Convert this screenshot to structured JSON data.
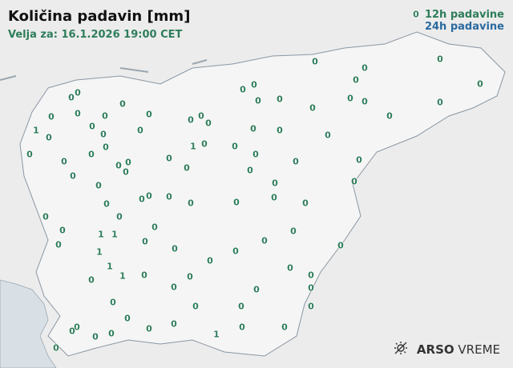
{
  "title": "Količina padavin [mm]",
  "valid": "Velja za: 16.1.2026 19:00 CET",
  "legend": {
    "h12": "12h padavine",
    "h24": "24h padavine",
    "color12": "#2e7d5b",
    "color24": "#2a6aa0"
  },
  "logo": {
    "brand": "ARSO",
    "product": "VREME",
    "icon": "sun-icon"
  },
  "stations": [
    [
      519,
      18,
      "0"
    ],
    [
      393,
      77,
      "0"
    ],
    [
      549,
      74,
      "0"
    ],
    [
      455,
      85,
      "0"
    ],
    [
      97,
      116,
      "0"
    ],
    [
      89,
      122,
      "0"
    ],
    [
      317,
      106,
      "0"
    ],
    [
      303,
      112,
      "0"
    ],
    [
      444,
      100,
      "0"
    ],
    [
      599,
      105,
      "0"
    ],
    [
      153,
      130,
      "0"
    ],
    [
      322,
      126,
      "0"
    ],
    [
      349,
      124,
      "0"
    ],
    [
      437,
      123,
      "0"
    ],
    [
      455,
      127,
      "0"
    ],
    [
      549,
      128,
      "0"
    ],
    [
      64,
      146,
      "0"
    ],
    [
      97,
      142,
      "0"
    ],
    [
      131,
      145,
      "0"
    ],
    [
      186,
      143,
      "0"
    ],
    [
      238,
      150,
      "0"
    ],
    [
      251,
      145,
      "0"
    ],
    [
      260,
      154,
      "0"
    ],
    [
      390,
      135,
      "0"
    ],
    [
      486,
      145,
      "0"
    ],
    [
      45,
      163,
      "1"
    ],
    [
      61,
      172,
      "0"
    ],
    [
      115,
      158,
      "0"
    ],
    [
      175,
      163,
      "0"
    ],
    [
      129,
      168,
      "0"
    ],
    [
      316,
      161,
      "0"
    ],
    [
      349,
      163,
      "0"
    ],
    [
      409,
      169,
      "0"
    ],
    [
      37,
      193,
      "0"
    ],
    [
      132,
      184,
      "0"
    ],
    [
      241,
      183,
      "1"
    ],
    [
      255,
      180,
      "0"
    ],
    [
      293,
      183,
      "0"
    ],
    [
      319,
      193,
      "0"
    ],
    [
      80,
      202,
      "0"
    ],
    [
      114,
      193,
      "0"
    ],
    [
      211,
      198,
      "0"
    ],
    [
      148,
      207,
      "0"
    ],
    [
      160,
      203,
      "0"
    ],
    [
      157,
      215,
      "0"
    ],
    [
      233,
      210,
      "0"
    ],
    [
      312,
      213,
      "0"
    ],
    [
      369,
      202,
      "0"
    ],
    [
      448,
      200,
      "0"
    ],
    [
      91,
      220,
      "0"
    ],
    [
      123,
      232,
      "0"
    ],
    [
      343,
      229,
      "0"
    ],
    [
      442,
      227,
      "0"
    ],
    [
      186,
      245,
      "0"
    ],
    [
      177,
      249,
      "0"
    ],
    [
      211,
      246,
      "0"
    ],
    [
      342,
      247,
      "0"
    ],
    [
      133,
      255,
      "0"
    ],
    [
      238,
      254,
      "0"
    ],
    [
      295,
      253,
      "0"
    ],
    [
      381,
      254,
      "0"
    ],
    [
      57,
      271,
      "0"
    ],
    [
      149,
      271,
      "0"
    ],
    [
      78,
      288,
      "0"
    ],
    [
      193,
      284,
      "0"
    ],
    [
      126,
      293,
      "1"
    ],
    [
      143,
      293,
      "1"
    ],
    [
      73,
      306,
      "0"
    ],
    [
      181,
      302,
      "0"
    ],
    [
      330,
      301,
      "0"
    ],
    [
      366,
      289,
      "0"
    ],
    [
      425,
      307,
      "0"
    ],
    [
      124,
      315,
      "1"
    ],
    [
      218,
      311,
      "0"
    ],
    [
      262,
      326,
      "0"
    ],
    [
      294,
      314,
      "0"
    ],
    [
      137,
      333,
      "1"
    ],
    [
      362,
      335,
      "0"
    ],
    [
      114,
      350,
      "0"
    ],
    [
      153,
      345,
      "1"
    ],
    [
      180,
      344,
      "0"
    ],
    [
      237,
      346,
      "0"
    ],
    [
      388,
      344,
      "0"
    ],
    [
      217,
      359,
      "0"
    ],
    [
      320,
      362,
      "0"
    ],
    [
      141,
      378,
      "0"
    ],
    [
      388,
      360,
      "0"
    ],
    [
      244,
      383,
      "0"
    ],
    [
      301,
      383,
      "0"
    ],
    [
      388,
      383,
      "0"
    ],
    [
      159,
      398,
      "0"
    ],
    [
      96,
      409,
      "0"
    ],
    [
      90,
      414,
      "0"
    ],
    [
      186,
      411,
      "0"
    ],
    [
      217,
      405,
      "0"
    ],
    [
      139,
      417,
      "0"
    ],
    [
      119,
      421,
      "0"
    ],
    [
      302,
      409,
      "0"
    ],
    [
      355,
      409,
      "0"
    ],
    [
      270,
      418,
      "1"
    ],
    [
      70,
      435,
      "0"
    ]
  ]
}
